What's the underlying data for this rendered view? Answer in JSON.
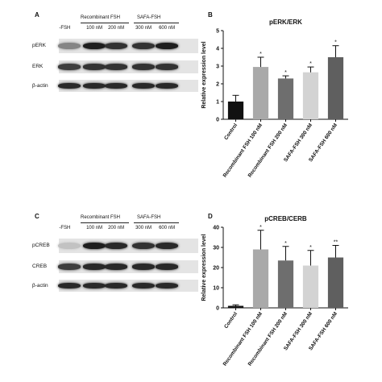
{
  "panels": {
    "A": {
      "letter": "A",
      "group_headers": [
        "Recombinant FSH",
        "SAFA-FSH"
      ],
      "lane_labels": [
        "-FSH",
        "100 nM",
        "200 nM",
        "300 nM",
        "600 nM"
      ],
      "rows": [
        {
          "label": "pERK",
          "intensity": [
            0.45,
            0.95,
            0.85,
            0.85,
            0.95
          ]
        },
        {
          "label": "ERK",
          "intensity": [
            0.8,
            0.85,
            0.85,
            0.85,
            0.85
          ]
        },
        {
          "label": "β-actin",
          "intensity": [
            0.9,
            0.9,
            0.9,
            0.9,
            0.9
          ]
        }
      ]
    },
    "C": {
      "letter": "C",
      "group_headers": [
        "Recombinant FSH",
        "SAFA-FSH"
      ],
      "lane_labels": [
        "-FSH",
        "100 nM",
        "200 nM",
        "300 nM",
        "600 nM"
      ],
      "rows": [
        {
          "label": "pCREB",
          "intensity": [
            0.15,
            0.95,
            0.9,
            0.85,
            0.9
          ]
        },
        {
          "label": "CREB",
          "intensity": [
            0.8,
            0.9,
            0.9,
            0.9,
            0.9
          ]
        },
        {
          "label": "β-actin",
          "intensity": [
            0.9,
            0.9,
            0.9,
            0.9,
            0.9
          ]
        }
      ]
    },
    "B": {
      "letter": "B"
    },
    "D": {
      "letter": "D"
    }
  },
  "chart_data": [
    {
      "panel": "B",
      "type": "bar",
      "title": "pERK/ERK",
      "ylabel": "Relative expression level",
      "xlabel": "",
      "ylim": [
        0,
        5
      ],
      "yticks": [
        0,
        1,
        2,
        3,
        4,
        5
      ],
      "categories": [
        "Control",
        "Recombinant FSH 100 nM",
        "Recombinant FSH 200 nM",
        "SAFA-FSH 300 nM",
        "SAFA-FSH 600 nM"
      ],
      "values": [
        1.0,
        2.95,
        2.3,
        2.65,
        3.5
      ],
      "errors": [
        0.35,
        0.55,
        0.15,
        0.3,
        0.65
      ],
      "significance": [
        "",
        "*",
        "*",
        "*",
        "*"
      ],
      "colors": [
        "#111111",
        "#a9a9a9",
        "#6e6e6e",
        "#d3d3d3",
        "#5f5f5f"
      ]
    },
    {
      "panel": "D",
      "type": "bar",
      "title": "pCREB/CERB",
      "ylabel": "Relative expression level",
      "xlabel": "",
      "ylim": [
        0,
        40
      ],
      "yticks": [
        0,
        10,
        20,
        30,
        40
      ],
      "categories": [
        "Control",
        "Recombinant FSH 100 nM",
        "Recombinant FSH 200 nM",
        "SAFA-FSH 300 nM",
        "SAFA-FSH 600 nM"
      ],
      "values": [
        1.0,
        29.0,
        23.5,
        21.0,
        25.0
      ],
      "errors": [
        0.5,
        9.5,
        7.0,
        7.5,
        6.0
      ],
      "significance": [
        "",
        "*",
        "*",
        "*",
        "**"
      ],
      "colors": [
        "#111111",
        "#a9a9a9",
        "#6e6e6e",
        "#d3d3d3",
        "#5f5f5f"
      ]
    }
  ]
}
